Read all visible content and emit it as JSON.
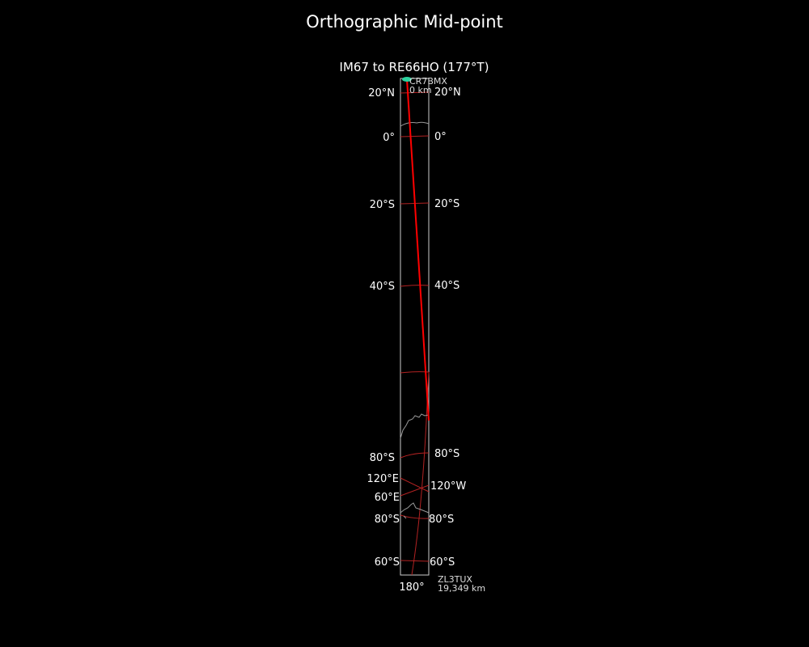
{
  "title": "Orthographic Mid-point",
  "subtitle": "IM67 to RE66HO (177°T)",
  "start": {
    "call": "CR7BMX",
    "distance": "0 km"
  },
  "end": {
    "call": "ZL3TUX",
    "distance": "19,349 km"
  },
  "left_labels": [
    "20°N",
    "0°",
    "20°S",
    "40°S",
    "80°S",
    "120°E",
    "60°E",
    "80°S",
    "60°S"
  ],
  "right_labels": [
    "20°N",
    "0°",
    "20°S",
    "40°S",
    "80°S",
    "120°W",
    "80°S",
    "60°S"
  ],
  "bottom_label": "180°",
  "colors": {
    "path": "#ff0000",
    "graticule": "#b22222",
    "coast": "#999999",
    "start_marker": "#2dd4a0",
    "frame": "#cccccc"
  }
}
